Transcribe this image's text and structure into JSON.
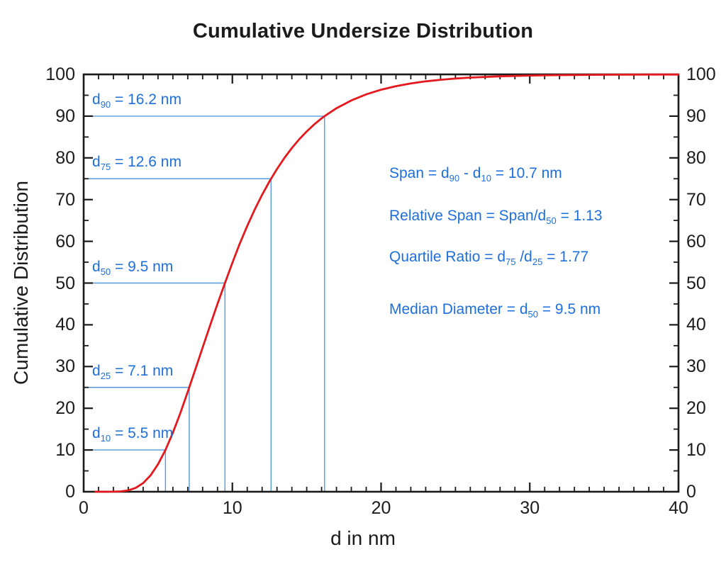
{
  "figure": {
    "title": "Cumulative Undersize Distribution",
    "xlabel": "d in nm",
    "ylabel": "Cumulative Distribution"
  },
  "colors": {
    "curve": "#e3191e",
    "guide_line": "#559ae0",
    "annotation_text": "#1e6fdb",
    "axis": "#1a1a1a"
  },
  "chart_data": {
    "type": "line",
    "title": "Cumulative Undersize Distribution",
    "xlabel": "d in nm",
    "ylabel": "Cumulative Distribution",
    "xlim": [
      0,
      40
    ],
    "ylim": [
      0,
      100
    ],
    "grid": false,
    "legend": false,
    "x_major_ticks": [
      0,
      10,
      20,
      30,
      40
    ],
    "x_minor_step": 1,
    "y_major_ticks": [
      0,
      10,
      20,
      30,
      40,
      50,
      60,
      70,
      80,
      90,
      100
    ],
    "y_minor_step": 5,
    "y_axis_mirrored_right": true,
    "series": [
      {
        "name": "cumulative-undersize-curve",
        "points": [
          [
            0.8,
            0
          ],
          [
            1.5,
            0
          ],
          [
            2,
            0.01
          ],
          [
            2.5,
            0.08
          ],
          [
            3,
            0.32
          ],
          [
            3.5,
            0.92
          ],
          [
            4,
            2.07
          ],
          [
            4.5,
            3.93
          ],
          [
            5,
            6.58
          ],
          [
            5.5,
            10
          ],
          [
            6,
            14.13
          ],
          [
            6.5,
            18.82
          ],
          [
            7,
            23.94
          ],
          [
            7.1,
            25
          ],
          [
            7.5,
            29.2
          ],
          [
            8,
            34.53
          ],
          [
            8.5,
            39.83
          ],
          [
            9,
            45.02
          ],
          [
            9.5,
            50
          ],
          [
            10,
            54.88
          ],
          [
            10.5,
            59.45
          ],
          [
            11,
            63.69
          ],
          [
            11.5,
            67.59
          ],
          [
            12,
            71.16
          ],
          [
            12.5,
            74.39
          ],
          [
            12.6,
            75
          ],
          [
            13,
            77.33
          ],
          [
            13.5,
            79.99
          ],
          [
            14,
            82.35
          ],
          [
            14.5,
            84.46
          ],
          [
            15,
            86.34
          ],
          [
            15.5,
            88
          ],
          [
            16,
            89.47
          ],
          [
            16.2,
            90
          ],
          [
            17,
            91.9
          ],
          [
            18,
            93.77
          ],
          [
            19,
            95.22
          ],
          [
            20,
            96.33
          ],
          [
            21,
            97.18
          ],
          [
            22,
            97.84
          ],
          [
            23,
            98.33
          ],
          [
            24,
            98.71
          ],
          [
            25,
            99.01
          ],
          [
            26,
            99.23
          ],
          [
            28,
            99.54
          ],
          [
            30,
            99.72
          ],
          [
            32,
            99.83
          ],
          [
            34,
            99.89
          ],
          [
            36,
            99.93
          ],
          [
            38,
            99.96
          ],
          [
            40,
            99.97
          ]
        ]
      }
    ],
    "percentiles": [
      {
        "p": 90,
        "d_nm": 16.2,
        "label": "d{90} = 16.2 nm"
      },
      {
        "p": 75,
        "d_nm": 12.6,
        "label": "d{75}  = 12.6 nm"
      },
      {
        "p": 50,
        "d_nm": 9.5,
        "label": "d{50} = 9.5 nm"
      },
      {
        "p": 25,
        "d_nm": 7.1,
        "label": "d{25}  = 7.1 nm"
      },
      {
        "p": 10,
        "d_nm": 5.5,
        "label": "d{10} = 5.5 nm"
      }
    ],
    "stats": [
      "Span = d{90} - d{10} = 10.7 nm",
      "Relative Span = Span/d{50} = 1.13",
      "Quartile Ratio = d{75} /d{25} = 1.77",
      "Median Diameter = d{50} = 9.5 nm"
    ]
  }
}
